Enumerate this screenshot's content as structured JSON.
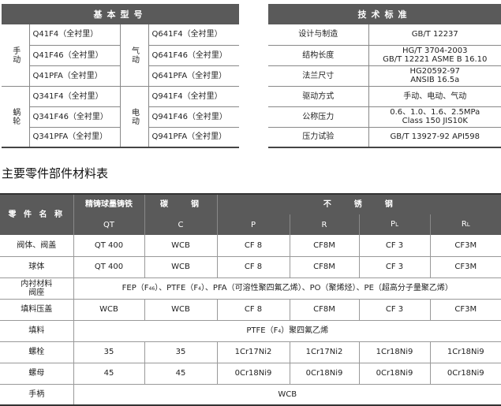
{
  "basic_models": {
    "title": "基本型号",
    "groups": [
      {
        "drive": "手动",
        "models": [
          "Q41F4（全衬里）",
          "Q41F46（全衬里）",
          "Q41PFA（全衬里）"
        ]
      },
      {
        "drive": "气动",
        "models": [
          "Q641F4（全衬里）",
          "Q641F46（全衬里）",
          "Q641PFA（全衬里）"
        ]
      },
      {
        "drive": "蜗轮",
        "models": [
          "Q341F4（全衬里）",
          "Q341F46（全衬里）",
          "Q341PFA（全衬里）"
        ]
      },
      {
        "drive": "电动",
        "models": [
          "Q941F4（全衬里）",
          "Q941F46（全衬里）",
          "Q941PFA（全衬里）"
        ]
      }
    ]
  },
  "tech_standards": {
    "title": "技术标准",
    "rows": [
      {
        "label": "设计与制造",
        "value": [
          "GB/T 12237"
        ]
      },
      {
        "label": "结构长度",
        "value": [
          "HG/T 3704-2003",
          "GB/T 12221   ASME B 16.10"
        ]
      },
      {
        "label": "法兰尺寸",
        "value": [
          "HG20592-97",
          "ANSIB 16.5a"
        ]
      },
      {
        "label": "驱动方式",
        "value": [
          "手动、电动、气动"
        ]
      },
      {
        "label": "公称压力",
        "value": [
          "0.6、1.0、1.6、2.5MPa",
          "Class 150  JIS10K"
        ]
      },
      {
        "label": "压力试验",
        "value": [
          "GB/T 13927-92   API598"
        ]
      }
    ]
  },
  "materials": {
    "title": "主要零件部件材料表",
    "header": {
      "part_name": "零 件 名 称",
      "ductile": "精铸球墨铸铁",
      "carbon": "碳    钢",
      "stainless": "不    锈    钢",
      "codes": [
        "QT",
        "C",
        "P",
        "R",
        "PL",
        "RL"
      ]
    },
    "rows": [
      {
        "name": "阀体、阀盖",
        "cells": [
          "QT 400",
          "WCB",
          "CF 8",
          "CF8M",
          "CF 3",
          "CF3M"
        ]
      },
      {
        "name": "球体",
        "cells": [
          "QT 400",
          "WCB",
          "CF 8",
          "CF8M",
          "CF 3",
          "CF3M"
        ]
      },
      {
        "name": "内衬材料\n阀座",
        "span": "FEP（F46）、PTFE（F4）、PFA（可溶性聚四氟乙烯）、PO（聚烯烃）、PE（超高分子量聚乙烯）"
      },
      {
        "name": "填料压盖",
        "cells": [
          "WCB",
          "WCB",
          "CF 8",
          "CF8M",
          "CF 3",
          "CF3M"
        ]
      },
      {
        "name": "填料",
        "span": "PTFE（F4）聚四氟乙烯"
      },
      {
        "name": "螺栓",
        "cells": [
          "35",
          "35",
          "1Cr17Ni2",
          "1Cr17Ni2",
          "1Cr18Ni9",
          "1Cr18Ni9"
        ]
      },
      {
        "name": "螺母",
        "cells": [
          "45",
          "45",
          "0Cr18Ni9",
          "0Cr18Ni9",
          "0Cr18Ni9",
          "0Cr18Ni9"
        ]
      },
      {
        "name": "手柄",
        "span": "WCB"
      }
    ]
  }
}
